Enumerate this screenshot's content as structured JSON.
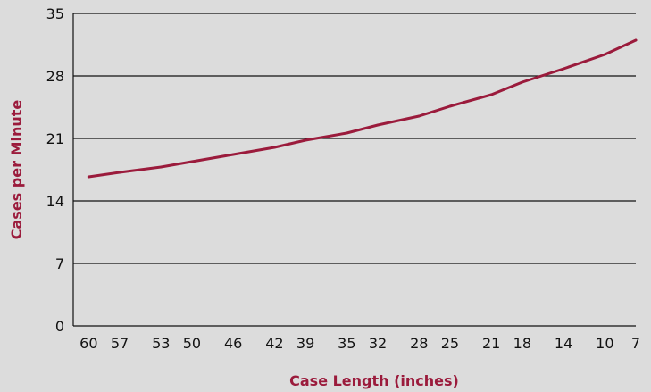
{
  "chart_data": {
    "type": "line",
    "title": "",
    "xlabel": "Case Length (inches)",
    "ylabel": "Cases per Minute",
    "x_ticks": [
      "60",
      "57",
      "53",
      "50",
      "46",
      "42",
      "39",
      "35",
      "32",
      "28",
      "25",
      "21",
      "18",
      "14",
      "10",
      "7"
    ],
    "y_ticks": [
      0,
      7,
      14,
      21,
      28,
      35
    ],
    "ylim": [
      0,
      35
    ],
    "xlim": [
      61.5,
      7
    ],
    "grid": "horizontal",
    "legend": "none",
    "series": [
      {
        "color": "#9b1b3c",
        "x": [
          60,
          57,
          53,
          50,
          46,
          42,
          39,
          35,
          32,
          28,
          25,
          21,
          18,
          14,
          10,
          7
        ],
        "values": [
          16.7,
          17.2,
          17.8,
          18.4,
          19.2,
          20.0,
          20.8,
          21.6,
          22.5,
          23.5,
          24.6,
          25.9,
          27.3,
          28.8,
          30.4,
          32.0
        ]
      }
    ]
  }
}
